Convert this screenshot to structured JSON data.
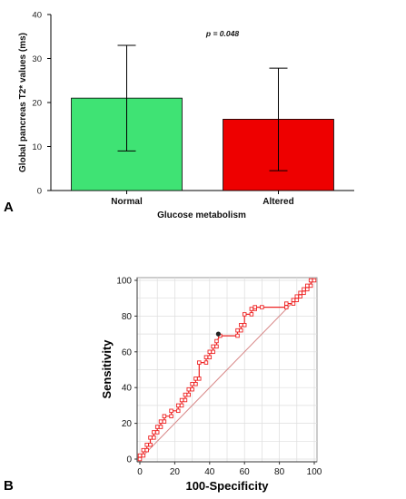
{
  "chart_data": [
    {
      "type": "bar",
      "panel_label": "A",
      "categories": [
        "Normal",
        "Altered"
      ],
      "values": [
        21.0,
        16.2
      ],
      "error_low": [
        9.0,
        4.5
      ],
      "error_high": [
        33.0,
        27.8
      ],
      "colors": [
        "#3fe374",
        "#ee0000"
      ],
      "title": "",
      "xlabel": "Glucose metabolism",
      "ylabel": "Global pancreas T2* values (ms)",
      "ylim": [
        0,
        40
      ],
      "yticks": [
        0,
        10,
        20,
        30,
        40
      ],
      "annotation": "p = 0.048",
      "grid": false
    },
    {
      "type": "line",
      "panel_label": "B",
      "title": "",
      "xlabel": "100-Specificity",
      "ylabel": "Sensitivity",
      "xlim": [
        0,
        100
      ],
      "ylim": [
        0,
        100
      ],
      "xticks": [
        0,
        20,
        40,
        60,
        80,
        100
      ],
      "yticks": [
        0,
        20,
        40,
        60,
        80,
        100
      ],
      "grid": true,
      "line_color": "#ee2222",
      "diagonal_color": "#d88888",
      "series": [
        {
          "x": [
            0,
            0,
            2,
            2,
            4,
            4,
            6,
            6,
            8,
            8,
            10,
            10,
            12,
            12,
            14,
            14,
            18,
            18,
            22,
            22,
            24,
            24,
            26,
            26,
            28,
            28,
            30,
            30,
            32,
            32,
            34,
            34,
            38,
            38,
            40,
            40,
            42,
            42,
            44,
            44,
            46,
            56,
            56,
            58,
            58,
            60,
            60,
            64,
            64,
            66,
            66,
            70,
            84,
            84,
            88,
            88,
            90,
            90,
            92,
            92,
            94,
            94,
            96,
            96,
            98,
            98,
            100
          ],
          "y": [
            0,
            2,
            2,
            5,
            5,
            8,
            8,
            12,
            12,
            15,
            15,
            18,
            18,
            21,
            21,
            24,
            24,
            27,
            27,
            30,
            30,
            33,
            33,
            36,
            36,
            39,
            39,
            42,
            42,
            45,
            45,
            54,
            54,
            57,
            57,
            60,
            60,
            63,
            63,
            66,
            69,
            69,
            72,
            72,
            75,
            75,
            81,
            81,
            84,
            84,
            85,
            85,
            85,
            87,
            87,
            89,
            89,
            91,
            91,
            93,
            93,
            95,
            95,
            97,
            97,
            100,
            100
          ]
        }
      ],
      "optimal_point": {
        "x": 45,
        "y": 70
      }
    }
  ]
}
